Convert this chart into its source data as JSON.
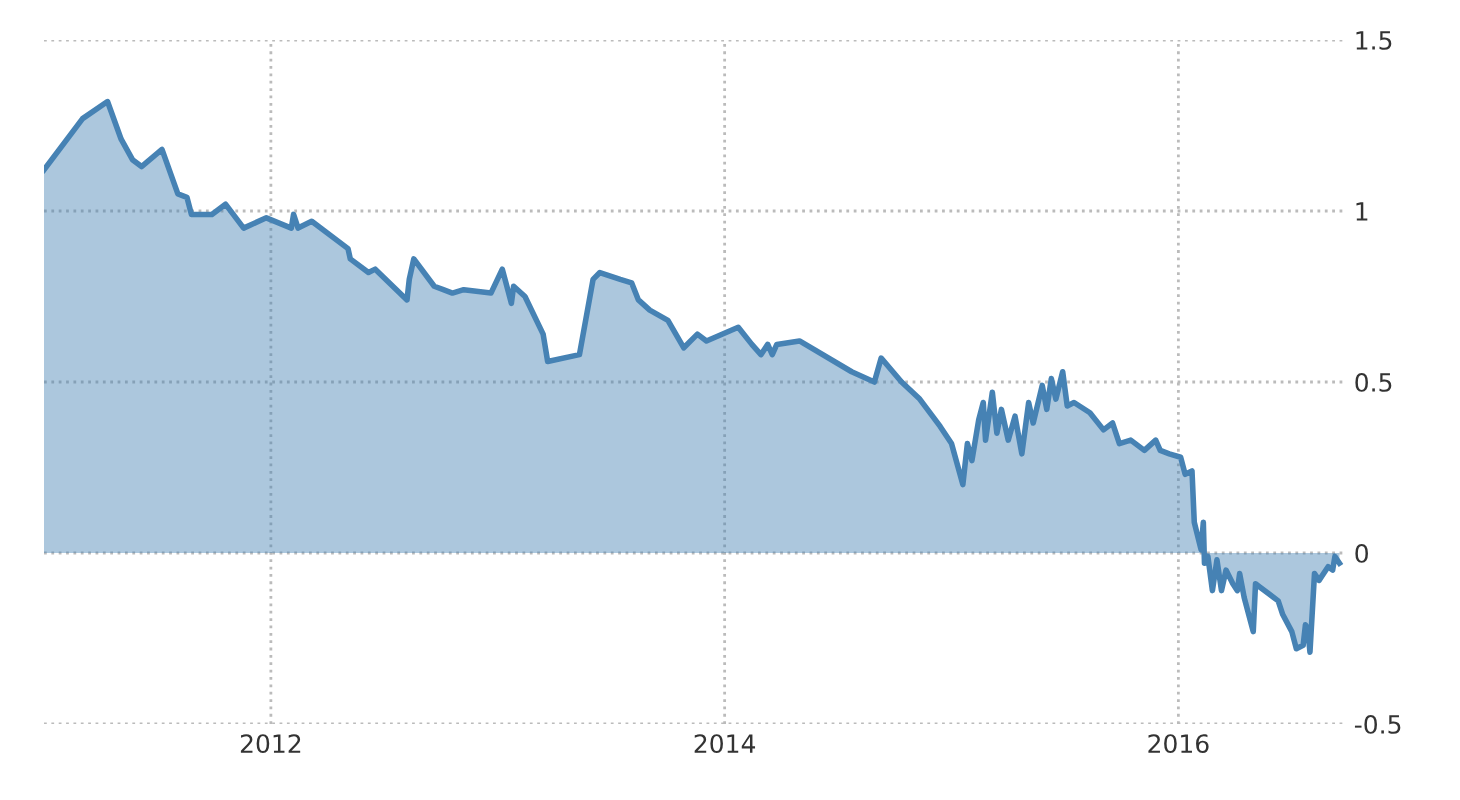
{
  "chart_data": {
    "type": "area",
    "x": [
      2011.0,
      2011.17,
      2011.28,
      2011.34,
      2011.39,
      2011.43,
      2011.52,
      2011.59,
      2011.63,
      2011.65,
      2011.74,
      2011.8,
      2011.88,
      2011.98,
      2012.09,
      2012.1,
      2012.12,
      2012.18,
      2012.34,
      2012.35,
      2012.43,
      2012.46,
      2012.6,
      2012.61,
      2012.63,
      2012.72,
      2012.76,
      2012.8,
      2012.85,
      2012.97,
      2013.02,
      2013.06,
      2013.07,
      2013.12,
      2013.2,
      2013.22,
      2013.36,
      2013.42,
      2013.45,
      2013.54,
      2013.59,
      2013.62,
      2013.67,
      2013.75,
      2013.82,
      2013.88,
      2013.92,
      2014.06,
      2014.12,
      2014.16,
      2014.19,
      2014.21,
      2014.23,
      2014.33,
      2014.56,
      2014.66,
      2014.69,
      2014.78,
      2014.86,
      2014.95,
      2015.0,
      2015.05,
      2015.07,
      2015.09,
      2015.12,
      2015.14,
      2015.15,
      2015.18,
      2015.2,
      2015.22,
      2015.25,
      2015.28,
      2015.31,
      2015.34,
      2015.36,
      2015.4,
      2015.42,
      2015.44,
      2015.46,
      2015.49,
      2015.51,
      2015.54,
      2015.61,
      2015.67,
      2015.71,
      2015.74,
      2015.79,
      2015.85,
      2015.9,
      2015.92,
      2015.96,
      2016.01,
      2016.03,
      2016.06,
      2016.07,
      2016.1,
      2016.11,
      2016.115,
      2016.13,
      2016.15,
      2016.17,
      2016.19,
      2016.21,
      2016.24,
      2016.26,
      2016.27,
      2016.29,
      2016.33,
      2016.34,
      2016.36,
      2016.4,
      2016.44,
      2016.46,
      2016.5,
      2016.52,
      2016.55,
      2016.56,
      2016.57,
      2016.58,
      2016.6,
      2016.62,
      2016.66,
      2016.68,
      2016.69,
      2016.71
    ],
    "series": [
      {
        "color": "#4682b4",
        "values": [
          1.12,
          1.27,
          1.32,
          1.21,
          1.15,
          1.13,
          1.18,
          1.05,
          1.04,
          0.99,
          0.99,
          1.02,
          0.95,
          0.98,
          0.95,
          0.99,
          0.95,
          0.97,
          0.89,
          0.86,
          0.82,
          0.83,
          0.74,
          0.8,
          0.86,
          0.78,
          0.77,
          0.76,
          0.77,
          0.76,
          0.83,
          0.73,
          0.78,
          0.75,
          0.64,
          0.56,
          0.58,
          0.8,
          0.82,
          0.8,
          0.79,
          0.74,
          0.71,
          0.68,
          0.6,
          0.64,
          0.62,
          0.66,
          0.61,
          0.58,
          0.61,
          0.58,
          0.61,
          0.62,
          0.53,
          0.5,
          0.57,
          0.5,
          0.45,
          0.37,
          0.32,
          0.2,
          0.32,
          0.27,
          0.39,
          0.44,
          0.33,
          0.47,
          0.35,
          0.42,
          0.33,
          0.4,
          0.29,
          0.44,
          0.38,
          0.49,
          0.42,
          0.51,
          0.45,
          0.53,
          0.43,
          0.44,
          0.41,
          0.36,
          0.38,
          0.32,
          0.33,
          0.3,
          0.33,
          0.3,
          0.29,
          0.28,
          0.23,
          0.24,
          0.09,
          0.01,
          0.09,
          -0.03,
          -0.01,
          -0.11,
          -0.02,
          -0.11,
          -0.05,
          -0.09,
          -0.11,
          -0.06,
          -0.13,
          -0.23,
          -0.09,
          -0.1,
          -0.12,
          -0.14,
          -0.18,
          -0.23,
          -0.28,
          -0.27,
          -0.21,
          -0.22,
          -0.29,
          -0.06,
          -0.08,
          -0.04,
          -0.05,
          -0.01,
          -0.03
        ]
      }
    ],
    "xlim": [
      2011.0,
      2016.73
    ],
    "xticks": [
      2012,
      2014,
      2016
    ],
    "ylim": [
      -0.5,
      1.5
    ],
    "yticks": [
      -0.5,
      0,
      0.5,
      1,
      1.5
    ],
    "grid": true
  }
}
